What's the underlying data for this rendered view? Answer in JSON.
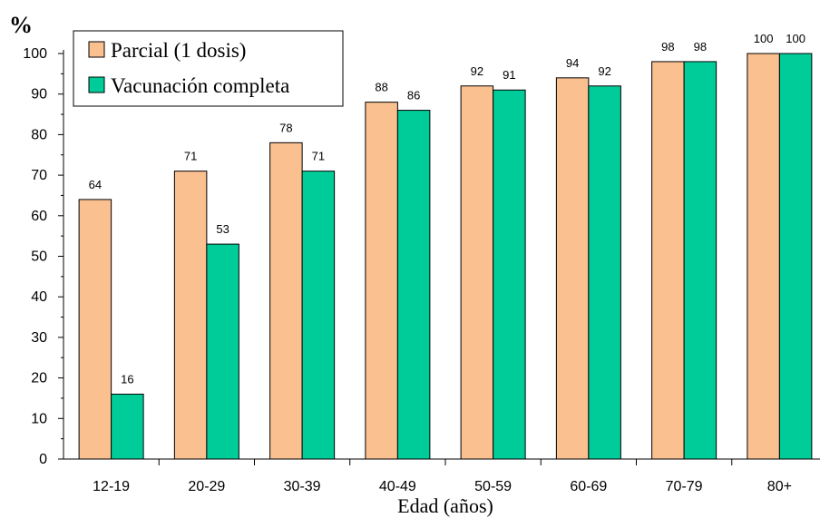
{
  "chart_data": {
    "type": "bar",
    "ylabel": "%",
    "xlabel": "Edad (años)",
    "categories": [
      "12-19",
      "20-29",
      "30-39",
      "40-49",
      "50-59",
      "60-69",
      "70-79",
      "80+"
    ],
    "series": [
      {
        "name": "Parcial (1 dosis)",
        "color": "#FAC090",
        "values": [
          64,
          71,
          78,
          88,
          92,
          94,
          98,
          100
        ]
      },
      {
        "name": "Vacunación completa",
        "color": "#00CC99",
        "values": [
          16,
          53,
          71,
          86,
          91,
          92,
          98,
          100
        ]
      }
    ],
    "ylim": [
      0,
      100
    ],
    "yticks": [
      0,
      10,
      20,
      30,
      40,
      50,
      60,
      70,
      80,
      90,
      100
    ],
    "grid": false,
    "legend_position": "top-left"
  }
}
